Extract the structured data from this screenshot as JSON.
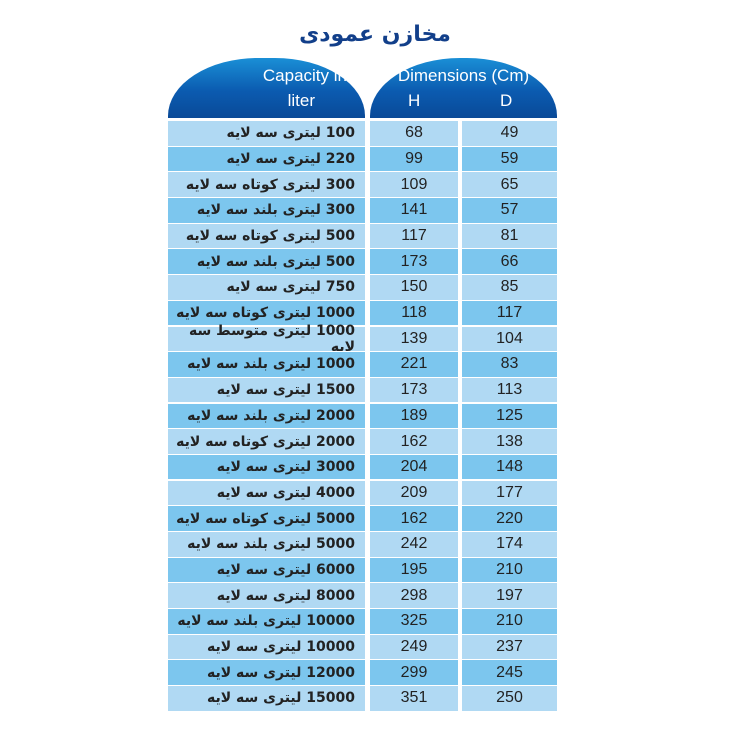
{
  "title": "مخازن عمودی",
  "header": {
    "capacity_line1": "Capacity in",
    "capacity_line2": "liter",
    "dimensions": "Dimensions (Cm)",
    "h": "H",
    "d": "D"
  },
  "colors": {
    "header_blue": "#0b5bb0",
    "row_light": "#b0d9f3",
    "row_dark": "#7cc6ee"
  },
  "rows": [
    {
      "capacity": "100   لیتری سه لایه",
      "h": "68",
      "d": "49"
    },
    {
      "capacity": "220   لیتری سه لایه",
      "h": "99",
      "d": "59"
    },
    {
      "capacity": "300   لیتری کوتاه سه لایه",
      "h": "109",
      "d": "65"
    },
    {
      "capacity": "300   لیتری بلند سه لایه",
      "h": "141",
      "d": "57"
    },
    {
      "capacity": "500   لیتری کوتاه سه لایه",
      "h": "117",
      "d": "81"
    },
    {
      "capacity": "500 لیتری بلند سه لایه",
      "h": "173",
      "d": "66"
    },
    {
      "capacity": "750 لیتری سه لایه",
      "h": "150",
      "d": "85"
    },
    {
      "capacity": "1000 لیتری کوتاه سه لایه",
      "h": "118",
      "d": "117"
    },
    {
      "capacity": "1000 لیتری متوسط سه لایه",
      "h": "139",
      "d": "104"
    },
    {
      "capacity": "1000 لیتری بلند سه لایه",
      "h": "221",
      "d": "83"
    },
    {
      "capacity": "1500 لیتری سه لایه",
      "h": "173",
      "d": "113"
    },
    {
      "capacity": "2000 لیتری بلند سه لایه",
      "h": "189",
      "d": "125"
    },
    {
      "capacity": "2000 لیتری کوتاه سه لایه",
      "h": "162",
      "d": "138"
    },
    {
      "capacity": "3000 لیتری سه لایه",
      "h": "204",
      "d": "148"
    },
    {
      "capacity": "4000 لیتری سه لایه",
      "h": "209",
      "d": "177"
    },
    {
      "capacity": "5000 لیتری کوتاه سه لایه",
      "h": "162",
      "d": "220"
    },
    {
      "capacity": "5000 لیتری بلند سه لایه",
      "h": "242",
      "d": "174"
    },
    {
      "capacity": "6000 لیتری سه لایه",
      "h": "195",
      "d": "210"
    },
    {
      "capacity": "8000 لیتری سه لایه",
      "h": "298",
      "d": "197"
    },
    {
      "capacity": "10000 لیتری بلند سه لایه",
      "h": "325",
      "d": "210"
    },
    {
      "capacity": "10000 لیتری سه لایه",
      "h": "249",
      "d": "237"
    },
    {
      "capacity": "12000 لیتری سه لایه",
      "h": "299",
      "d": "245"
    },
    {
      "capacity": "15000 لیتری سه لایه",
      "h": "351",
      "d": "250"
    }
  ]
}
